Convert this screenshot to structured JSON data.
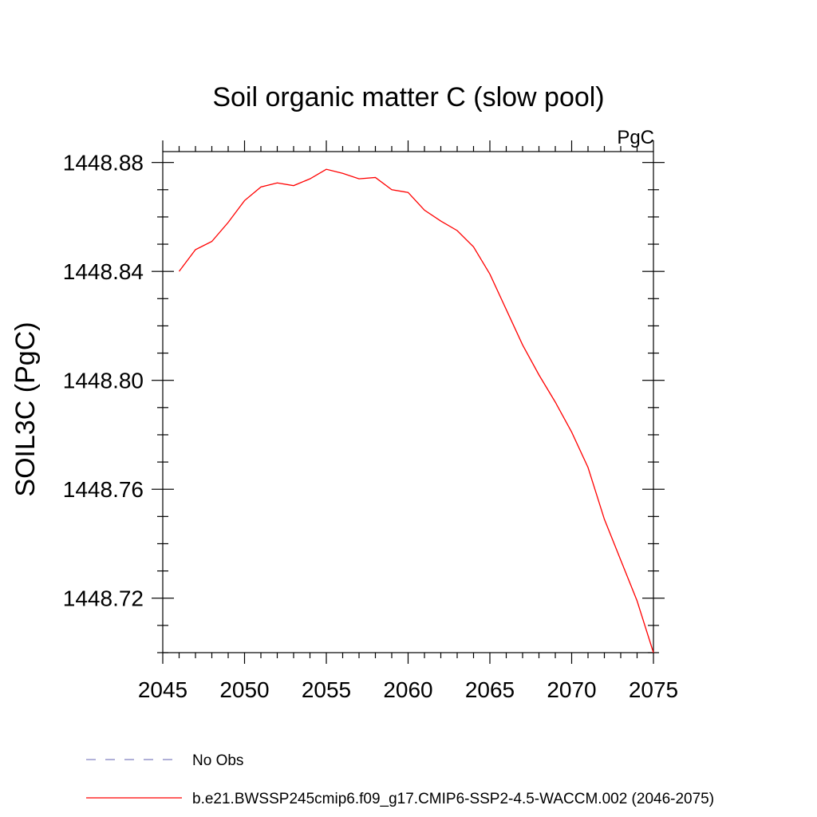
{
  "chart_data": {
    "type": "line",
    "title": "Soil organic matter C (slow pool)",
    "units_label": "PgC",
    "ylabel": "SOIL3C  (PgC)",
    "xlabel": "",
    "xlim": [
      2045,
      2075
    ],
    "ylim": [
      1448.7,
      1448.884
    ],
    "xticks": [
      2045,
      2050,
      2055,
      2060,
      2065,
      2070,
      2075
    ],
    "yticks": [
      1448.72,
      1448.76,
      1448.8,
      1448.84,
      1448.88
    ],
    "ytick_labels": [
      "1448.72",
      "1448.76",
      "1448.80",
      "1448.84",
      "1448.88"
    ],
    "grid": false,
    "legend_position": "bottom",
    "series": [
      {
        "name": "b.e21.BWSSP245cmip6.f09_g17.CMIP6-SSP2-4.5-WACCM.002 (2046-2075)",
        "color": "#ff0000",
        "style": "solid",
        "x": [
          2046,
          2047,
          2048,
          2049,
          2050,
          2051,
          2052,
          2053,
          2054,
          2055,
          2056,
          2057,
          2058,
          2059,
          2060,
          2061,
          2062,
          2063,
          2064,
          2065,
          2066,
          2067,
          2068,
          2069,
          2070,
          2071,
          2072,
          2073,
          2074,
          2075
        ],
        "y": [
          1448.84,
          1448.848,
          1448.851,
          1448.858,
          1448.866,
          1448.871,
          1448.8725,
          1448.8715,
          1448.874,
          1448.8775,
          1448.876,
          1448.874,
          1448.8745,
          1448.87,
          1448.869,
          1448.8625,
          1448.8585,
          1448.855,
          1448.849,
          1448.839,
          1448.826,
          1448.813,
          1448.802,
          1448.792,
          1448.781,
          1448.768,
          1448.749,
          1448.734,
          1448.719,
          1448.7
        ]
      },
      {
        "name": "No Obs",
        "color": "#8080c0",
        "style": "dashed",
        "x": [],
        "y": []
      }
    ]
  }
}
